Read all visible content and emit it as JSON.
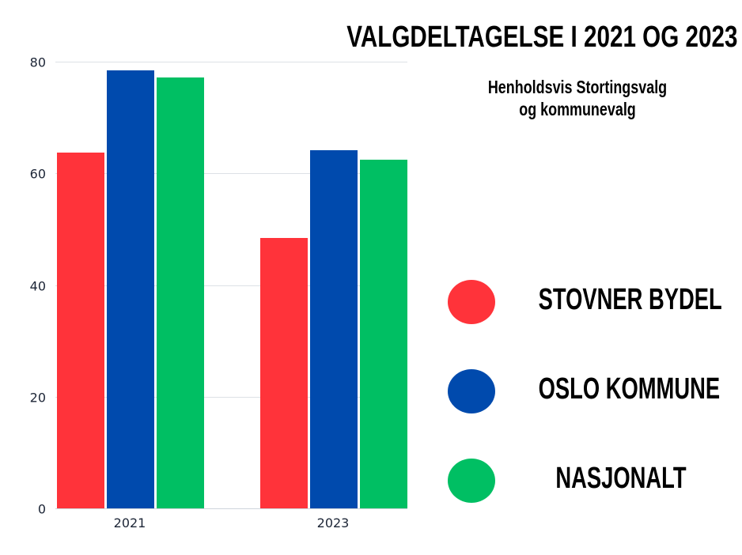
{
  "chart_data": {
    "type": "bar",
    "title": "VALGDELTAGELSE I 2021 OG 2023",
    "subtitle": "Henholdsvis Stortingsvalg og kommunevalg",
    "categories": [
      "2021",
      "2023"
    ],
    "series": [
      {
        "name": "STOVNER BYDEL",
        "color": "#ff333a",
        "values": [
          63.8,
          48.5
        ]
      },
      {
        "name": "OSLO KOMMUNE",
        "color": "#004aad",
        "values": [
          78.6,
          64.3
        ]
      },
      {
        "name": "NASJONALT",
        "color": "#00bf63",
        "values": [
          77.3,
          62.6
        ]
      }
    ],
    "xlabel": "",
    "ylabel": "",
    "ylim": [
      0,
      80
    ],
    "yticks": [
      "0",
      "20",
      "40",
      "60",
      "80"
    ],
    "grid": true,
    "legend_position": "right"
  },
  "header": {
    "title": "VALGDELTAGELSE I 2021 OG 2023",
    "subtitle_line1": "Henholdsvis Stortingsvalg",
    "subtitle_line2": "og kommunevalg"
  },
  "axis": {
    "y_labels": [
      "80",
      "60",
      "40",
      "20",
      "0"
    ],
    "x_labels": [
      "2021",
      "2023"
    ]
  },
  "legend": {
    "items": [
      {
        "label": "STOVNER BYDEL",
        "color": "#ff333a"
      },
      {
        "label": "OSLO KOMMUNE",
        "color": "#004aad"
      },
      {
        "label": "NASJONALT",
        "color": "#00bf63"
      }
    ]
  }
}
